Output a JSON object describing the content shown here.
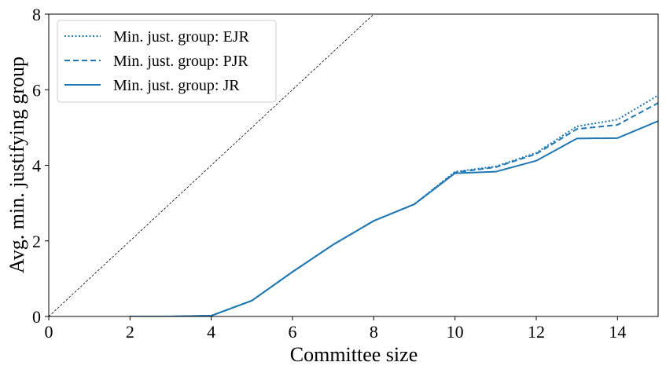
{
  "chart_data": {
    "type": "line",
    "xlabel": "Committee size",
    "ylabel": "Avg. min. justifying group",
    "xlim": [
      0,
      15
    ],
    "ylim": [
      0,
      8
    ],
    "xticks": [
      "0",
      "2",
      "4",
      "6",
      "8",
      "10",
      "12",
      "14"
    ],
    "yticks": [
      "0",
      "2",
      "4",
      "6",
      "8"
    ],
    "grid": false,
    "legend_position": "top-left",
    "line_color": "#1f77b4",
    "reference_line": {
      "x": [
        0,
        8
      ],
      "y": [
        0,
        8
      ],
      "style": "dashed",
      "color": "#000000"
    },
    "series": [
      {
        "name": "Min. just. group: EJR",
        "style": "dotted",
        "x": [
          2,
          3,
          4,
          5,
          6,
          7,
          8,
          9,
          10,
          11,
          12,
          13,
          14,
          15
        ],
        "y": [
          0.0,
          0.0,
          0.02,
          0.42,
          1.18,
          1.9,
          2.53,
          2.97,
          3.83,
          3.97,
          4.33,
          5.03,
          5.21,
          5.85
        ]
      },
      {
        "name": "Min. just. group: PJR",
        "style": "dashed",
        "x": [
          2,
          3,
          4,
          5,
          6,
          7,
          8,
          9,
          10,
          11,
          12,
          13,
          14,
          15
        ],
        "y": [
          0.0,
          0.0,
          0.02,
          0.42,
          1.18,
          1.9,
          2.53,
          2.97,
          3.81,
          3.95,
          4.3,
          4.96,
          5.07,
          5.65
        ]
      },
      {
        "name": "Min. just. group: JR",
        "style": "solid",
        "x": [
          2,
          3,
          4,
          5,
          6,
          7,
          8,
          9,
          10,
          11,
          12,
          13,
          14,
          15
        ],
        "y": [
          0.0,
          0.0,
          0.02,
          0.42,
          1.18,
          1.9,
          2.53,
          2.97,
          3.79,
          3.83,
          4.12,
          4.71,
          4.72,
          5.17
        ]
      }
    ]
  }
}
